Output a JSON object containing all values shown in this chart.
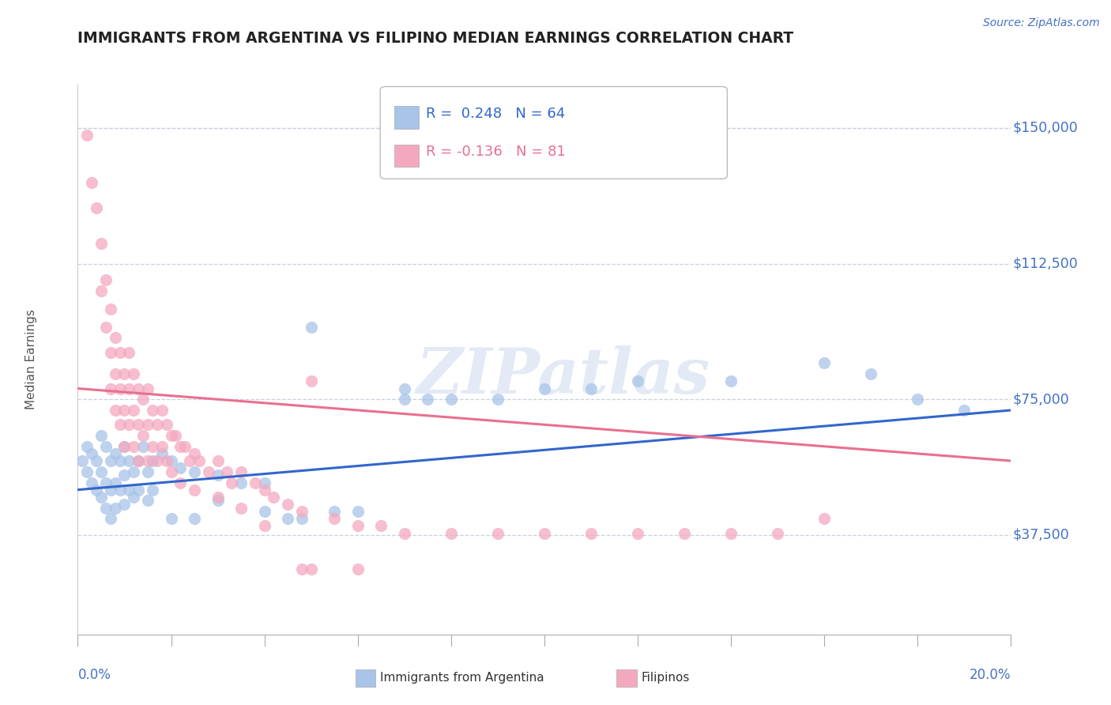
{
  "title": "IMMIGRANTS FROM ARGENTINA VS FILIPINO MEDIAN EARNINGS CORRELATION CHART",
  "source": "Source: ZipAtlas.com",
  "ylabel": "Median Earnings",
  "xmin": 0.0,
  "xmax": 0.2,
  "ymin": 10000,
  "ymax": 162000,
  "argentina_R": 0.248,
  "argentina_N": 64,
  "filipino_R": -0.136,
  "filipino_N": 81,
  "argentina_color": "#a8c4e8",
  "filipino_color": "#f4a8be",
  "argentina_line_color": "#3366cc",
  "filipino_line_color": "#e87090",
  "legend_label_argentina": "Immigrants from Argentina",
  "legend_label_filipino": "Filipinos",
  "watermark": "ZIPatlas",
  "title_color": "#222222",
  "axis_label_color": "#4472c4",
  "background_color": "#ffffff",
  "grid_color": "#c8d0de",
  "ytick_vals": [
    37500,
    75000,
    112500,
    150000
  ],
  "ytick_labels": [
    "$37,500",
    "$75,000",
    "$112,500",
    "$150,000"
  ],
  "argentina_points": [
    [
      0.001,
      58000
    ],
    [
      0.002,
      62000
    ],
    [
      0.002,
      55000
    ],
    [
      0.003,
      60000
    ],
    [
      0.003,
      52000
    ],
    [
      0.004,
      58000
    ],
    [
      0.004,
      50000
    ],
    [
      0.005,
      65000
    ],
    [
      0.005,
      55000
    ],
    [
      0.005,
      48000
    ],
    [
      0.006,
      62000
    ],
    [
      0.006,
      52000
    ],
    [
      0.006,
      45000
    ],
    [
      0.007,
      58000
    ],
    [
      0.007,
      50000
    ],
    [
      0.007,
      42000
    ],
    [
      0.008,
      60000
    ],
    [
      0.008,
      52000
    ],
    [
      0.008,
      45000
    ],
    [
      0.009,
      58000
    ],
    [
      0.009,
      50000
    ],
    [
      0.01,
      62000
    ],
    [
      0.01,
      54000
    ],
    [
      0.01,
      46000
    ],
    [
      0.011,
      58000
    ],
    [
      0.011,
      50000
    ],
    [
      0.012,
      55000
    ],
    [
      0.012,
      48000
    ],
    [
      0.013,
      58000
    ],
    [
      0.013,
      50000
    ],
    [
      0.014,
      62000
    ],
    [
      0.015,
      55000
    ],
    [
      0.015,
      47000
    ],
    [
      0.016,
      58000
    ],
    [
      0.016,
      50000
    ],
    [
      0.018,
      60000
    ],
    [
      0.02,
      58000
    ],
    [
      0.02,
      42000
    ],
    [
      0.022,
      56000
    ],
    [
      0.025,
      55000
    ],
    [
      0.025,
      42000
    ],
    [
      0.03,
      54000
    ],
    [
      0.03,
      47000
    ],
    [
      0.035,
      52000
    ],
    [
      0.04,
      52000
    ],
    [
      0.04,
      44000
    ],
    [
      0.045,
      42000
    ],
    [
      0.048,
      42000
    ],
    [
      0.05,
      95000
    ],
    [
      0.055,
      44000
    ],
    [
      0.06,
      44000
    ],
    [
      0.07,
      78000
    ],
    [
      0.07,
      75000
    ],
    [
      0.075,
      75000
    ],
    [
      0.08,
      75000
    ],
    [
      0.09,
      75000
    ],
    [
      0.1,
      78000
    ],
    [
      0.11,
      78000
    ],
    [
      0.12,
      80000
    ],
    [
      0.14,
      80000
    ],
    [
      0.16,
      85000
    ],
    [
      0.17,
      82000
    ],
    [
      0.18,
      75000
    ],
    [
      0.19,
      72000
    ]
  ],
  "filipino_points": [
    [
      0.002,
      148000
    ],
    [
      0.003,
      135000
    ],
    [
      0.004,
      128000
    ],
    [
      0.005,
      118000
    ],
    [
      0.005,
      105000
    ],
    [
      0.006,
      108000
    ],
    [
      0.006,
      95000
    ],
    [
      0.007,
      100000
    ],
    [
      0.007,
      88000
    ],
    [
      0.007,
      78000
    ],
    [
      0.008,
      92000
    ],
    [
      0.008,
      82000
    ],
    [
      0.008,
      72000
    ],
    [
      0.009,
      88000
    ],
    [
      0.009,
      78000
    ],
    [
      0.009,
      68000
    ],
    [
      0.01,
      82000
    ],
    [
      0.01,
      72000
    ],
    [
      0.01,
      62000
    ],
    [
      0.011,
      88000
    ],
    [
      0.011,
      78000
    ],
    [
      0.011,
      68000
    ],
    [
      0.012,
      82000
    ],
    [
      0.012,
      72000
    ],
    [
      0.012,
      62000
    ],
    [
      0.013,
      78000
    ],
    [
      0.013,
      68000
    ],
    [
      0.013,
      58000
    ],
    [
      0.014,
      75000
    ],
    [
      0.014,
      65000
    ],
    [
      0.015,
      78000
    ],
    [
      0.015,
      68000
    ],
    [
      0.015,
      58000
    ],
    [
      0.016,
      72000
    ],
    [
      0.016,
      62000
    ],
    [
      0.017,
      68000
    ],
    [
      0.017,
      58000
    ],
    [
      0.018,
      72000
    ],
    [
      0.018,
      62000
    ],
    [
      0.019,
      68000
    ],
    [
      0.019,
      58000
    ],
    [
      0.02,
      65000
    ],
    [
      0.02,
      55000
    ],
    [
      0.021,
      65000
    ],
    [
      0.022,
      62000
    ],
    [
      0.022,
      52000
    ],
    [
      0.023,
      62000
    ],
    [
      0.024,
      58000
    ],
    [
      0.025,
      60000
    ],
    [
      0.025,
      50000
    ],
    [
      0.026,
      58000
    ],
    [
      0.028,
      55000
    ],
    [
      0.03,
      58000
    ],
    [
      0.03,
      48000
    ],
    [
      0.032,
      55000
    ],
    [
      0.033,
      52000
    ],
    [
      0.035,
      55000
    ],
    [
      0.035,
      45000
    ],
    [
      0.038,
      52000
    ],
    [
      0.04,
      50000
    ],
    [
      0.04,
      40000
    ],
    [
      0.042,
      48000
    ],
    [
      0.045,
      46000
    ],
    [
      0.048,
      44000
    ],
    [
      0.05,
      80000
    ],
    [
      0.055,
      42000
    ],
    [
      0.06,
      40000
    ],
    [
      0.065,
      40000
    ],
    [
      0.07,
      38000
    ],
    [
      0.08,
      38000
    ],
    [
      0.09,
      38000
    ],
    [
      0.1,
      38000
    ],
    [
      0.11,
      38000
    ],
    [
      0.12,
      38000
    ],
    [
      0.13,
      38000
    ],
    [
      0.14,
      38000
    ],
    [
      0.15,
      38000
    ],
    [
      0.16,
      42000
    ],
    [
      0.048,
      28000
    ],
    [
      0.05,
      28000
    ],
    [
      0.06,
      28000
    ]
  ]
}
